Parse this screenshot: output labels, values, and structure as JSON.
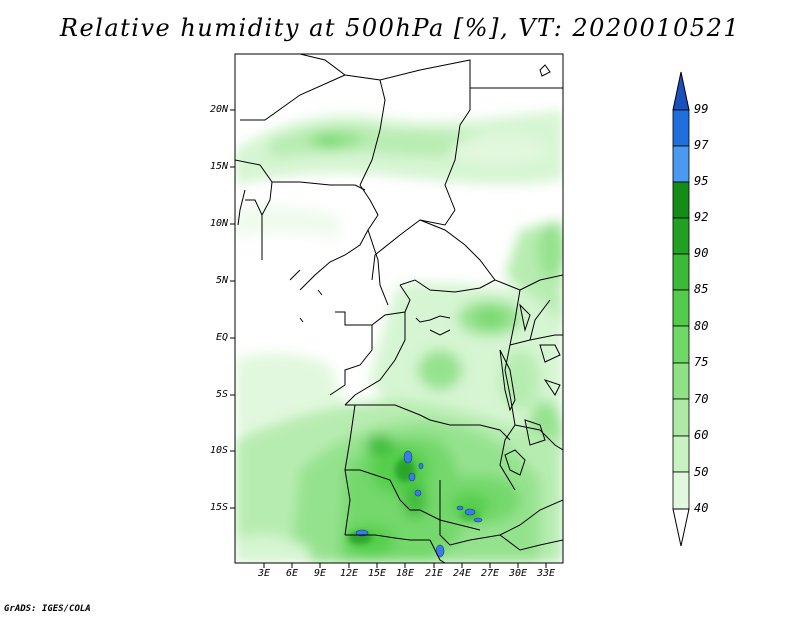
{
  "title": "Relative humidity at 500hPa [%], VT: 2020010521",
  "credit": "GrADS: IGES/COLA",
  "map": {
    "lat_labels": [
      "20N",
      "15N",
      "10N",
      "5N",
      "EQ",
      "5S",
      "10S",
      "15S"
    ],
    "lon_labels": [
      "3E",
      "6E",
      "9E",
      "12E",
      "15E",
      "18E",
      "21E",
      "24E",
      "27E",
      "30E",
      "33E"
    ],
    "colors": {
      "c40": "#f0fbee",
      "c50": "#d6f5d2",
      "c60": "#b7ecb1",
      "c70": "#95e28e",
      "c75": "#74d86c",
      "c80": "#56cf4d",
      "c85": "#3fbd3a",
      "c90": "#2aa52a",
      "c92": "#168c18",
      "c95": "#3d96ee",
      "c97": "#1f6fdc",
      "c99": "#1a4fbf",
      "lake": "#3b7de6"
    }
  },
  "colorbar": {
    "labels": [
      "99",
      "97",
      "95",
      "92",
      "90",
      "85",
      "80",
      "75",
      "70",
      "60",
      "50",
      "40"
    ],
    "colors": [
      "#1f6fdc",
      "#4a9af0",
      "#168c18",
      "#22a023",
      "#3bb937",
      "#53cc4d",
      "#6fd867",
      "#8fe186",
      "#aeeaa6",
      "#c9f2c2",
      "#e2f8de",
      "#f6fdf5"
    ]
  }
}
